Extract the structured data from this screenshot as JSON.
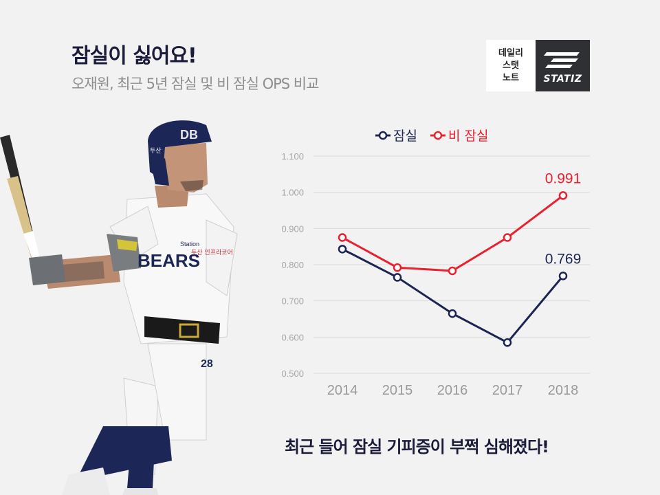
{
  "header": {
    "title": "잠실이 싫어요!",
    "subtitle": "오재원, 최근 5년 잠실 및 비 잠실 OPS 비교"
  },
  "logo": {
    "lines": [
      "데일리",
      "스탯",
      "노트"
    ],
    "brand": "STATIZ"
  },
  "player": {
    "helmet_text": "DB",
    "helmet_side_text": "두산",
    "sponsor_text": "Station",
    "sponsor_text2": "두산 인프라코어",
    "jersey_number": "28",
    "jersey_text": "BEARS"
  },
  "chart_data": {
    "type": "line",
    "categories": [
      "2014",
      "2015",
      "2016",
      "2017",
      "2018"
    ],
    "ylim": [
      0.5,
      1.1
    ],
    "yticks": [
      "0.500",
      "0.600",
      "0.700",
      "0.800",
      "0.900",
      "1.000",
      "1.100"
    ],
    "grid": true,
    "legend_position": "top",
    "series": [
      {
        "name": "잠실",
        "color": "#1b2452",
        "values": [
          0.843,
          0.765,
          0.665,
          0.585,
          0.769
        ],
        "end_label": "0.769"
      },
      {
        "name": "비 잠실",
        "color": "#e8212f",
        "values": [
          0.875,
          0.792,
          0.783,
          0.875,
          0.991
        ],
        "end_label": "0.991"
      }
    ]
  },
  "footer": {
    "caption": "최근 들어 잠실 기피증이 부쩍 심해졌다!"
  }
}
